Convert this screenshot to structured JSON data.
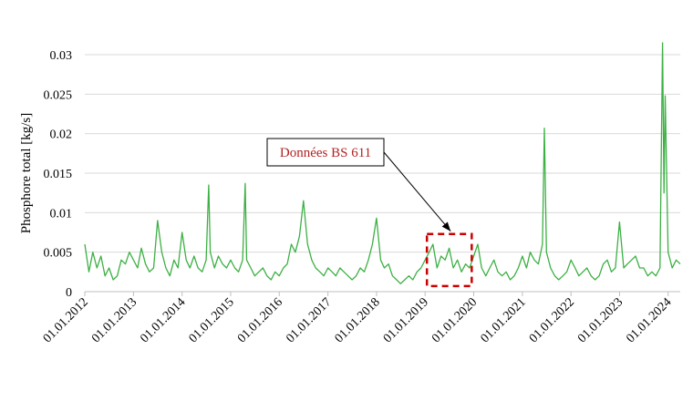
{
  "chart_data": {
    "type": "line",
    "ylabel": "Phosphore total [kg/s]",
    "xlabel": "",
    "title": "",
    "ylim": [
      0,
      0.03
    ],
    "y_ticks": [
      0,
      0.005,
      0.01,
      0.015,
      0.02,
      0.025,
      0.03
    ],
    "y_tick_labels": [
      "0",
      "0.005",
      "0.01",
      "0.015",
      "0.02",
      "0.025",
      "0.03"
    ],
    "x_range": [
      "2012-01-01",
      "2024-04-01"
    ],
    "x_ticks": [
      "2012-01-01",
      "2013-01-01",
      "2014-01-01",
      "2015-01-01",
      "2016-01-01",
      "2017-01-01",
      "2018-01-01",
      "2019-01-01",
      "2020-01-01",
      "2021-01-01",
      "2022-01-01",
      "2023-01-01",
      "2024-01-01"
    ],
    "x_tick_labels": [
      "01.01.2012",
      "01.01.2013",
      "01.01.2014",
      "01.01.2015",
      "01.01.2016",
      "01.01.2017",
      "01.01.2018",
      "01.01.2019",
      "01.01.2020",
      "01.01.2021",
      "01.01.2022",
      "01.01.2023",
      "01.01.2024"
    ],
    "grid": "horizontal",
    "legend": "none",
    "series_color": "#3cb043",
    "series": [
      {
        "x": [
          "2012-01-01",
          "2012-02-01",
          "2012-03-01",
          "2012-04-01",
          "2012-05-01",
          "2012-06-01",
          "2012-07-01",
          "2012-08-01",
          "2012-09-01",
          "2012-10-01",
          "2012-11-01",
          "2012-12-01",
          "2013-01-01",
          "2013-02-01",
          "2013-03-01",
          "2013-04-01",
          "2013-05-01",
          "2013-06-01",
          "2013-07-01",
          "2013-08-01",
          "2013-09-01",
          "2013-10-01",
          "2013-11-01",
          "2013-12-01",
          "2014-01-01",
          "2014-02-01",
          "2014-03-01",
          "2014-04-01",
          "2014-05-01",
          "2014-06-01",
          "2014-07-01",
          "2014-07-20",
          "2014-08-01",
          "2014-09-01",
          "2014-10-01",
          "2014-11-01",
          "2014-12-01",
          "2015-01-01",
          "2015-02-01",
          "2015-03-01",
          "2015-04-01",
          "2015-04-20",
          "2015-05-01",
          "2015-06-01",
          "2015-07-01",
          "2015-08-01",
          "2015-09-01",
          "2015-10-01",
          "2015-11-01",
          "2015-12-01",
          "2016-01-01",
          "2016-02-01",
          "2016-03-01",
          "2016-04-01",
          "2016-05-01",
          "2016-06-01",
          "2016-07-01",
          "2016-08-01",
          "2016-09-01",
          "2016-10-01",
          "2016-11-01",
          "2016-12-01",
          "2017-01-01",
          "2017-02-01",
          "2017-03-01",
          "2017-04-01",
          "2017-05-01",
          "2017-06-01",
          "2017-07-01",
          "2017-08-01",
          "2017-09-01",
          "2017-10-01",
          "2017-11-01",
          "2017-12-01",
          "2018-01-01",
          "2018-02-01",
          "2018-03-01",
          "2018-04-01",
          "2018-05-01",
          "2018-06-01",
          "2018-07-01",
          "2018-08-01",
          "2018-09-01",
          "2018-10-01",
          "2018-11-01",
          "2018-12-01",
          "2019-01-01",
          "2019-02-01",
          "2019-03-01",
          "2019-04-01",
          "2019-05-01",
          "2019-06-01",
          "2019-07-01",
          "2019-08-01",
          "2019-09-01",
          "2019-10-01",
          "2019-11-01",
          "2019-12-01",
          "2020-01-01",
          "2020-02-01",
          "2020-03-01",
          "2020-04-01",
          "2020-05-01",
          "2020-06-01",
          "2020-07-01",
          "2020-08-01",
          "2020-09-01",
          "2020-10-01",
          "2020-11-01",
          "2020-12-01",
          "2021-01-01",
          "2021-02-01",
          "2021-03-01",
          "2021-04-01",
          "2021-05-01",
          "2021-06-01",
          "2021-06-15",
          "2021-07-01",
          "2021-08-01",
          "2021-09-01",
          "2021-10-01",
          "2021-11-01",
          "2021-12-01",
          "2022-01-01",
          "2022-02-01",
          "2022-03-01",
          "2022-04-01",
          "2022-05-01",
          "2022-06-01",
          "2022-07-01",
          "2022-08-01",
          "2022-09-01",
          "2022-10-01",
          "2022-11-01",
          "2022-12-01",
          "2023-01-01",
          "2023-02-01",
          "2023-03-01",
          "2023-04-01",
          "2023-05-01",
          "2023-06-01",
          "2023-07-01",
          "2023-08-01",
          "2023-09-01",
          "2023-10-01",
          "2023-11-01",
          "2023-11-20",
          "2023-12-01",
          "2023-12-10",
          "2024-01-01",
          "2024-02-01",
          "2024-03-01",
          "2024-04-01"
        ],
        "y": [
          0.006,
          0.0025,
          0.005,
          0.003,
          0.0045,
          0.002,
          0.003,
          0.0015,
          0.002,
          0.004,
          0.0035,
          0.005,
          0.004,
          0.003,
          0.0055,
          0.0035,
          0.0025,
          0.003,
          0.009,
          0.005,
          0.003,
          0.002,
          0.004,
          0.003,
          0.0075,
          0.004,
          0.003,
          0.0045,
          0.003,
          0.0025,
          0.004,
          0.0135,
          0.005,
          0.003,
          0.0045,
          0.0035,
          0.003,
          0.004,
          0.003,
          0.0025,
          0.004,
          0.0137,
          0.004,
          0.003,
          0.002,
          0.0025,
          0.003,
          0.002,
          0.0015,
          0.0025,
          0.002,
          0.003,
          0.0035,
          0.006,
          0.005,
          0.007,
          0.0115,
          0.006,
          0.004,
          0.003,
          0.0025,
          0.002,
          0.003,
          0.0025,
          0.002,
          0.003,
          0.0025,
          0.002,
          0.0015,
          0.002,
          0.003,
          0.0025,
          0.004,
          0.006,
          0.0093,
          0.004,
          0.003,
          0.0035,
          0.002,
          0.0015,
          0.001,
          0.0015,
          0.002,
          0.0015,
          0.0025,
          0.003,
          0.004,
          0.005,
          0.006,
          0.003,
          0.0045,
          0.004,
          0.0055,
          0.003,
          0.004,
          0.0025,
          0.0035,
          0.003,
          0.0045,
          0.006,
          0.003,
          0.002,
          0.003,
          0.004,
          0.0025,
          0.002,
          0.0025,
          0.0015,
          0.002,
          0.003,
          0.0045,
          0.003,
          0.005,
          0.004,
          0.0035,
          0.006,
          0.0207,
          0.005,
          0.003,
          0.002,
          0.0015,
          0.002,
          0.0025,
          0.004,
          0.003,
          0.002,
          0.0025,
          0.003,
          0.002,
          0.0015,
          0.002,
          0.0035,
          0.004,
          0.0025,
          0.003,
          0.0088,
          0.003,
          0.0035,
          0.004,
          0.0045,
          0.003,
          0.003,
          0.002,
          0.0025,
          0.002,
          0.003,
          0.0315,
          0.0125,
          0.0248,
          0.005,
          0.003,
          0.004,
          0.0035
        ]
      }
    ],
    "annotation": {
      "label": "Données BS 611",
      "highlight_range": [
        "2019-01-01",
        "2019-12-31"
      ],
      "highlight_ylim": [
        0.0007,
        0.0073
      ],
      "box_color": "#cc0000",
      "text_color": "#b22222"
    }
  }
}
